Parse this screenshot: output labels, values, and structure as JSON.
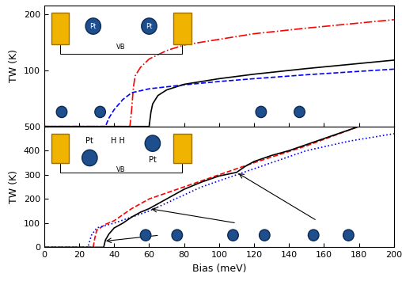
{
  "chart_data": [
    {
      "type": "line",
      "y_label": "TW (K)",
      "xlim": [
        0,
        200
      ],
      "xticks": [
        0,
        20,
        40,
        60,
        80,
        100,
        120,
        140,
        160,
        180,
        200
      ],
      "ylim": [
        0,
        215
      ],
      "yticks": [
        100,
        200
      ],
      "tick_labels": "y",
      "annotations": [
        "Pt",
        "Pt",
        "VB"
      ],
      "series": [
        {
          "color": "#ff0000",
          "line_style": "dashdot",
          "x": [
            0,
            49,
            50,
            51,
            52,
            55,
            60,
            70,
            80,
            100,
            120,
            150,
            180,
            200
          ],
          "values": [
            0,
            0,
            30,
            70,
            90,
            105,
            120,
            135,
            145,
            155,
            165,
            175,
            184,
            190
          ]
        },
        {
          "color": "#0000ff",
          "line_style": "dashed",
          "x": [
            0,
            35,
            37,
            40,
            45,
            50,
            60,
            80,
            100,
            120,
            150,
            180,
            200
          ],
          "values": [
            0,
            0,
            15,
            30,
            48,
            60,
            67,
            74,
            80,
            85,
            92,
            98,
            102
          ]
        },
        {
          "color": "#000000",
          "line_style": "solid",
          "x": [
            0,
            60,
            61,
            62,
            65,
            70,
            80,
            100,
            120,
            150,
            180,
            200
          ],
          "values": [
            0,
            0,
            25,
            40,
            55,
            65,
            75,
            85,
            93,
            103,
            112,
            118
          ]
        }
      ]
    },
    {
      "type": "line",
      "x_label": "Bias (meV)",
      "y_label": "TW (K)",
      "xlim": [
        0,
        200
      ],
      "xticks": [
        0,
        20,
        40,
        60,
        80,
        100,
        120,
        140,
        160,
        180,
        200
      ],
      "ylim": [
        0,
        500
      ],
      "yticks": [
        0,
        100,
        200,
        300,
        400,
        500
      ],
      "annotations": [
        "Pt",
        "H H",
        "Pt",
        "VB"
      ],
      "series": [
        {
          "color": "#ff0000",
          "line_style": "dashed",
          "x": [
            0,
            28,
            29,
            30,
            35,
            40,
            50,
            60,
            80,
            100,
            120,
            150,
            180
          ],
          "values": [
            0,
            0,
            40,
            70,
            95,
            110,
            160,
            200,
            250,
            300,
            350,
            420,
            500
          ]
        },
        {
          "color": "#0000ff",
          "line_style": "dotted",
          "x": [
            0,
            25,
            27,
            30,
            40,
            50,
            60,
            75,
            90,
            110,
            130,
            150,
            175,
            200
          ],
          "values": [
            0,
            0,
            50,
            80,
            100,
            125,
            150,
            200,
            250,
            300,
            350,
            400,
            440,
            470
          ]
        },
        {
          "color": "#000000",
          "line_style": "solid",
          "x": [
            0,
            34,
            35,
            37,
            40,
            45,
            50,
            55,
            60,
            70,
            80,
            90,
            100,
            110,
            115,
            120,
            130,
            140,
            160,
            180
          ],
          "values": [
            0,
            0,
            30,
            55,
            80,
            100,
            125,
            145,
            160,
            200,
            240,
            270,
            295,
            310,
            335,
            355,
            380,
            400,
            450,
            500
          ]
        }
      ]
    }
  ]
}
